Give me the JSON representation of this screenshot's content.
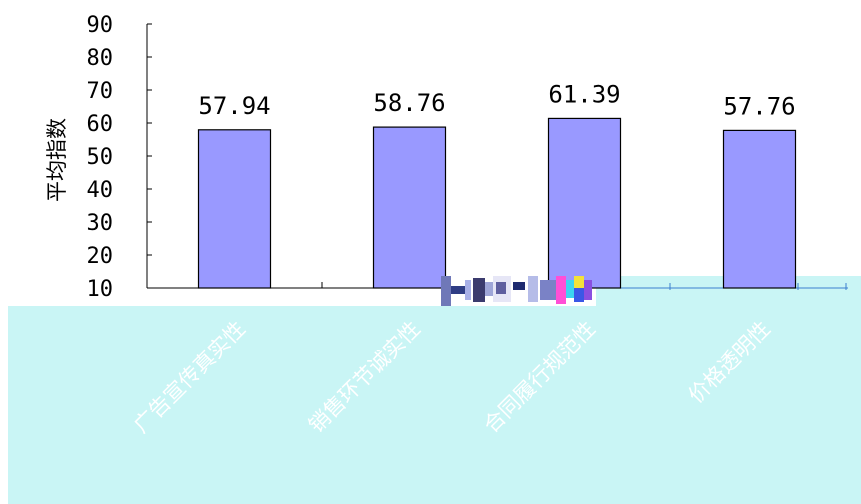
{
  "chart_data": {
    "type": "bar",
    "title": "",
    "xlabel": "",
    "ylabel": "平均指数",
    "categories": [
      "广告宣传真实性",
      "销售环节诚实性",
      "合同履行规范性",
      "价格透明性"
    ],
    "values": [
      57.94,
      58.76,
      61.39,
      57.76
    ],
    "data_labels": [
      "57.94",
      "58.76",
      "61.39",
      "57.76"
    ],
    "y_ticks": [
      "10",
      "20",
      "30",
      "40",
      "50",
      "60",
      "70",
      "80",
      "90"
    ],
    "ylim": [
      10,
      90
    ],
    "grid": false,
    "legend": "none",
    "colors": {
      "bar_fill": "#9999FF",
      "bar_stroke": "#000000",
      "overlay": "#C9F5F5",
      "axis": "#000000",
      "overlay_axis": "#3A7FD0"
    }
  }
}
